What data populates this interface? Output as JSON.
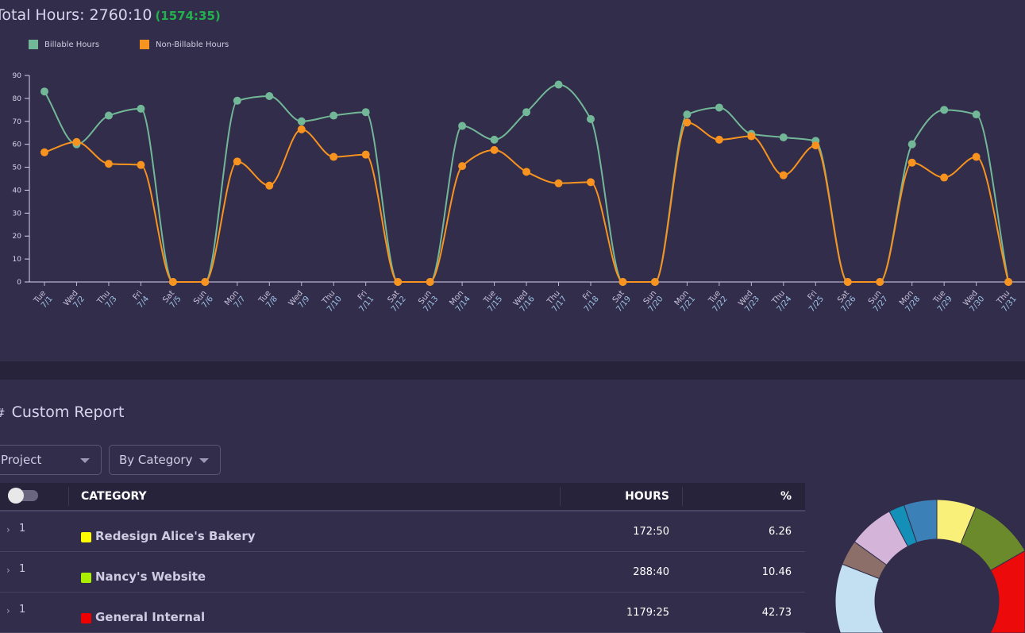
{
  "header": {
    "title": "Total Hours: 2760:10",
    "subtotal": "(1574:35)"
  },
  "colors": {
    "billable": "#72b898",
    "non_billable": "#f7931e",
    "subtotal": "#22b14c"
  },
  "chart_data": {
    "type": "line",
    "x": [
      "Tue 7/1",
      "Wed 7/2",
      "Thu 7/3",
      "Fri 7/4",
      "Sat 7/5",
      "Sun 7/6",
      "Mon 7/7",
      "Tue 7/8",
      "Wed 7/9",
      "Thu 7/10",
      "Fri 7/11",
      "Sat 7/12",
      "Sun 7/13",
      "Mon 7/14",
      "Tue 7/15",
      "Wed 7/16",
      "Thu 7/17",
      "Fri 7/18",
      "Sat 7/19",
      "Sun 7/20",
      "Mon 7/21",
      "Tue 7/22",
      "Wed 7/23",
      "Thu 7/24",
      "Fri 7/25",
      "Sat 7/26",
      "Sun 7/27",
      "Mon 7/28",
      "Tue 7/29",
      "Wed 7/30",
      "Thu 7/31"
    ],
    "series": [
      {
        "name": "Billable Hours",
        "color": "#72b898",
        "values": [
          83,
          60,
          72.5,
          75.5,
          0,
          0,
          79,
          81,
          70,
          72.5,
          74,
          0,
          0,
          68,
          62,
          74,
          86,
          71,
          0,
          0,
          73,
          76,
          64.5,
          63,
          61.5,
          0,
          0,
          60,
          75,
          73,
          0
        ]
      },
      {
        "name": "Non-Billable Hours",
        "color": "#f7931e",
        "values": [
          56.5,
          61,
          51.5,
          51,
          0,
          0,
          52.5,
          42,
          66.5,
          54.5,
          55.5,
          0,
          0,
          50.5,
          57.5,
          48,
          43,
          43.5,
          0,
          0,
          69.5,
          62,
          63.5,
          46.5,
          59.5,
          0,
          0,
          52,
          45.5,
          54.5,
          0
        ]
      }
    ],
    "yticks": [
      "0",
      "10",
      "20",
      "30",
      "40",
      "50",
      "60",
      "70",
      "80",
      "90"
    ],
    "ylim": [
      0,
      90
    ],
    "legend": "top-left",
    "grid": false
  },
  "report": {
    "title": "Custom Report",
    "title_icon": "hash-icon",
    "select_group": "Project",
    "select_by": "By Category",
    "columns": {
      "category": "CATEGORY",
      "hours": "HOURS",
      "percent": "%"
    },
    "rows": [
      {
        "count": "1",
        "name": "Redesign Alice's Bakery",
        "color": "#ffff00",
        "hours": "172:50",
        "percent": "6.26"
      },
      {
        "count": "1",
        "name": "Nancy's Website",
        "color": "#aaee00",
        "hours": "288:40",
        "percent": "10.46"
      },
      {
        "count": "1",
        "name": "General Internal",
        "color": "#ee0000",
        "hours": "1179:25",
        "percent": "42.73"
      }
    ]
  },
  "donut": [
    {
      "color": "#f9f07a",
      "percent": 6.26
    },
    {
      "color": "#6b8a2b",
      "percent": 10.46
    },
    {
      "color": "#ec0a0a",
      "percent": 42.73
    },
    {
      "color": "#c2e0f2",
      "percent": 21.5
    },
    {
      "color": "#8c6f68",
      "percent": 4.0
    },
    {
      "color": "#d4b4d9",
      "percent": 7.3
    },
    {
      "color": "#148fb8",
      "percent": 2.5
    },
    {
      "color": "#3b80b6",
      "percent": 5.25
    }
  ]
}
